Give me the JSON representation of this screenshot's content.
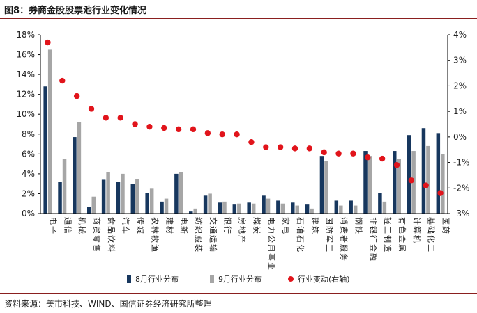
{
  "header": {
    "title": "图8：券商金股股票池行业变化情况"
  },
  "footer": {
    "source": "资料来源：美市科技、WIND、国信证券经济研究所整理"
  },
  "colors": {
    "aug": "#17375e",
    "sep": "#a6a6a6",
    "change": "#e1141b",
    "rule": "#8a1f1f"
  },
  "chart_data": {
    "type": "bar",
    "categories": [
      "电子",
      "通信",
      "机械",
      "商贸零售",
      "食品饮料",
      "汽车",
      "传媒",
      "农林牧渔",
      "建材",
      "电新",
      "纺织服装",
      "交通运输",
      "银行",
      "房地产",
      "煤炭",
      "电力公用事业",
      "家电",
      "石油石化",
      "建筑",
      "国防军工",
      "消费者服务",
      "钢铁",
      "非银行金融",
      "轻工制造",
      "有色金属",
      "计算机",
      "基础化工",
      "医药"
    ],
    "series": [
      {
        "name": "8月行业分布",
        "axis": "left",
        "values": [
          12.8,
          3.2,
          7.7,
          0.7,
          3.4,
          3.2,
          3.0,
          2.1,
          1.2,
          4.0,
          0.2,
          1.8,
          1.1,
          0.9,
          1.1,
          1.8,
          1.3,
          1.1,
          0.9,
          5.8,
          1.3,
          1.3,
          6.3,
          2.1,
          6.3,
          7.9,
          8.6,
          8.1
        ]
      },
      {
        "name": "9月行业分布",
        "axis": "left",
        "values": [
          16.5,
          5.5,
          9.2,
          1.7,
          4.2,
          4.0,
          3.5,
          2.5,
          1.5,
          4.2,
          0.5,
          2.0,
          1.2,
          1.0,
          1.0,
          1.5,
          1.0,
          0.8,
          0.5,
          5.3,
          0.8,
          0.8,
          5.8,
          1.2,
          5.5,
          6.3,
          6.8,
          6.0
        ]
      },
      {
        "name": "行业变动(右轴)",
        "axis": "right",
        "type": "scatter",
        "values": [
          3.7,
          2.2,
          1.6,
          1.1,
          0.75,
          0.75,
          0.5,
          0.4,
          0.35,
          0.3,
          0.3,
          0.15,
          0.1,
          0.1,
          -0.2,
          -0.4,
          -0.4,
          -0.45,
          -0.45,
          -0.6,
          -0.65,
          -0.65,
          -0.8,
          -0.85,
          -1.1,
          -1.7,
          -1.9,
          -2.2
        ]
      }
    ],
    "y_left": {
      "ylim": [
        0,
        18
      ],
      "ticks": [
        "0%",
        "2%",
        "4%",
        "6%",
        "8%",
        "10%",
        "12%",
        "14%",
        "16%",
        "18%"
      ]
    },
    "y_right": {
      "ylim": [
        -3,
        4
      ],
      "ticks": [
        "-3%",
        "-2%",
        "-1%",
        "0%",
        "1%",
        "2%",
        "3%",
        "4%"
      ]
    },
    "legend": {
      "placement": "bottom"
    },
    "grid": false
  }
}
